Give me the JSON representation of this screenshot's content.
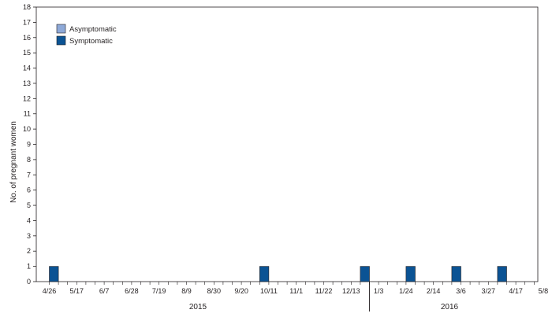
{
  "chart_data": {
    "type": "bar",
    "stacked": true,
    "ylabel": "No. of pregnant women",
    "ylim": [
      0,
      18
    ],
    "yticks": [
      0,
      1,
      2,
      3,
      4,
      5,
      6,
      7,
      8,
      9,
      10,
      11,
      12,
      13,
      14,
      15,
      16,
      17,
      18
    ],
    "grid": false,
    "legend_position": "top-left",
    "x_tick_labels": [
      "4/26",
      "5/17",
      "6/7",
      "6/28",
      "7/19",
      "8/9",
      "8/30",
      "9/20",
      "10/11",
      "11/1",
      "11/22",
      "12/13",
      "1/3",
      "1/24",
      "2/14",
      "3/6",
      "3/27",
      "4/17",
      "5/8"
    ],
    "year_labels": [
      "2015",
      "2016"
    ],
    "x": [
      "2015-05-03",
      "2015-05-10",
      "2015-05-17",
      "2015-05-24",
      "2015-05-31",
      "2015-06-07",
      "2015-06-14",
      "2015-06-21",
      "2015-06-28",
      "2015-07-05",
      "2015-07-12",
      "2015-07-19",
      "2015-07-26",
      "2015-08-02",
      "2015-08-09",
      "2015-08-16",
      "2015-08-23",
      "2015-08-30",
      "2015-09-06",
      "2015-09-13",
      "2015-09-20",
      "2015-09-27",
      "2015-10-04",
      "2015-10-11",
      "2015-10-18",
      "2015-10-25",
      "2015-11-01",
      "2015-11-08",
      "2015-11-15",
      "2015-11-22",
      "2015-11-29",
      "2015-12-06",
      "2015-12-13",
      "2015-12-20",
      "2015-12-27",
      "2016-01-03",
      "2016-01-10",
      "2016-01-17",
      "2016-01-24",
      "2016-01-31",
      "2016-02-07",
      "2016-02-14",
      "2016-02-21",
      "2016-02-28",
      "2016-03-06",
      "2016-03-13",
      "2016-03-20",
      "2016-03-27",
      "2016-04-03",
      "2016-04-10",
      "2016-04-17",
      "2016-04-24",
      "2016-05-01"
    ],
    "series": [
      {
        "name": "Symptomatic",
        "color": "#0b5394",
        "values": [
          1,
          0,
          0,
          0,
          0,
          0,
          0,
          0,
          0,
          0,
          0,
          0,
          0,
          0,
          0,
          0,
          0,
          0,
          0,
          0,
          0,
          0,
          0,
          1,
          0,
          0,
          0,
          0,
          0,
          0,
          0,
          0,
          0,
          0,
          1,
          0,
          0,
          0,
          0,
          1,
          0,
          0,
          0,
          0,
          1,
          0,
          0,
          0,
          0,
          1,
          0,
          0,
          0
        ]
      },
      {
        "name": "Asymptomatic",
        "color": "#8ea9d8",
        "values": [
          0,
          0,
          0,
          0,
          0,
          0,
          0,
          0,
          0,
          0,
          0,
          0,
          0,
          0,
          0,
          0,
          0,
          0,
          0,
          0,
          0,
          0,
          0,
          0,
          0,
          0,
          0,
          0,
          0,
          0,
          0,
          0,
          0,
          0,
          0,
          0,
          0,
          0,
          0,
          0,
          0,
          0,
          0,
          0,
          0,
          0,
          0,
          0,
          0,
          0,
          0,
          0,
          0
        ]
      }
    ]
  }
}
